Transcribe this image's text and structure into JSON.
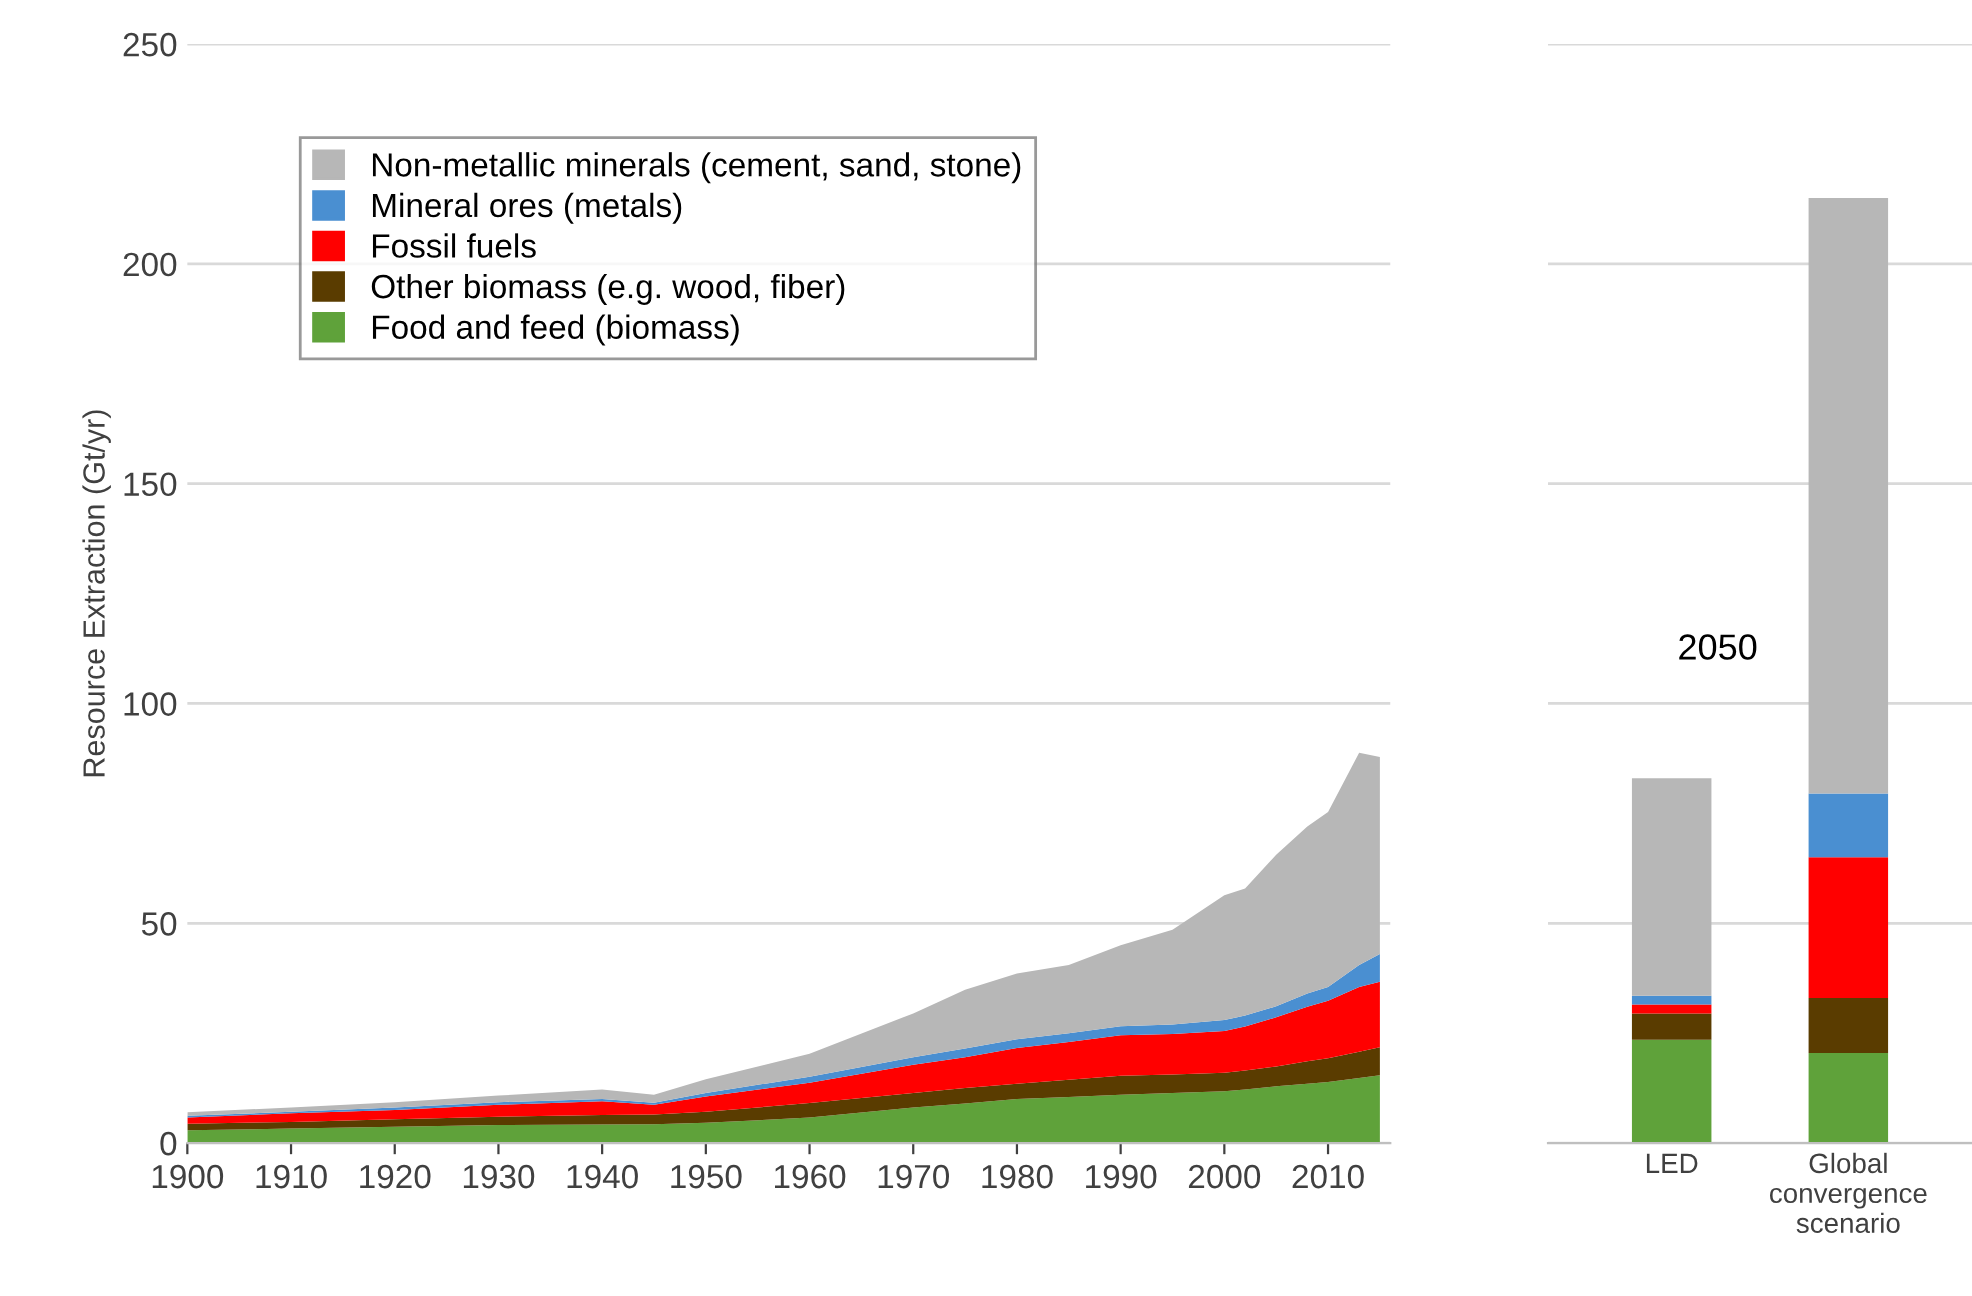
{
  "chart_data": [
    {
      "type": "area",
      "stacked": true,
      "ylabel": "Resource Extraction (Gt/yr)",
      "x": [
        1900,
        1910,
        1920,
        1930,
        1940,
        1945,
        1950,
        1960,
        1970,
        1975,
        1980,
        1985,
        1990,
        1995,
        2000,
        2002,
        2005,
        2008,
        2010,
        2013,
        2015
      ],
      "series": [
        {
          "name": "Food and feed (biomass)",
          "color": "#5fa23a",
          "values": [
            2.9,
            3.3,
            3.7,
            4.1,
            4.2,
            4.3,
            4.6,
            5.8,
            8.1,
            9.0,
            10.0,
            10.5,
            11.0,
            11.4,
            11.8,
            12.2,
            12.9,
            13.5,
            13.9,
            14.8,
            15.4
          ]
        },
        {
          "name": "Other biomass (e.g. wood, fiber)",
          "color": "#5a3c00",
          "values": [
            1.5,
            1.5,
            1.7,
            1.9,
            2.2,
            2.2,
            2.5,
            3.3,
            3.3,
            3.5,
            3.5,
            3.9,
            4.3,
            4.2,
            4.2,
            4.3,
            4.5,
            5.1,
            5.4,
            6.0,
            6.4
          ]
        },
        {
          "name": "Fossil fuels",
          "color": "#ff0000",
          "values": [
            1.4,
            2.0,
            2.1,
            2.7,
            3.1,
            2.2,
            3.5,
            4.6,
            6.4,
            7.0,
            8.1,
            8.6,
            9.2,
            9.2,
            9.5,
            10.0,
            11.2,
            12.4,
            13.1,
            14.7,
            14.9
          ]
        },
        {
          "name": "Mineral ores (metals)",
          "color": "#4a8fd1",
          "values": [
            0.4,
            0.3,
            0.6,
            0.6,
            0.5,
            0.5,
            0.8,
            1.4,
            1.7,
            2.0,
            2.0,
            2.0,
            2.1,
            2.2,
            2.5,
            2.5,
            2.5,
            3.0,
            3.1,
            5.0,
            6.3
          ]
        },
        {
          "name": "Non-metallic minerals (cement, sand, stone)",
          "color": "#b7b7b7",
          "values": [
            0.8,
            1.0,
            1.2,
            1.5,
            2.2,
            1.8,
            3.1,
            5.2,
            10.0,
            13.4,
            15.0,
            15.5,
            18.4,
            21.5,
            28.4,
            28.9,
            34.5,
            38.0,
            39.8,
            48.3,
            44.8
          ]
        }
      ],
      "xlim": [
        1900,
        2016
      ],
      "xticks": [
        1900,
        1910,
        1920,
        1930,
        1940,
        1950,
        1960,
        1970,
        1980,
        1990,
        2000,
        2010
      ],
      "ylim": [
        0,
        250
      ],
      "yticks": [
        0,
        50,
        100,
        150,
        200,
        250
      ],
      "grid": "y",
      "legend": "top left"
    },
    {
      "type": "bar",
      "stacked": true,
      "categories": [
        "LED",
        "Global\nconvergence\nscenario"
      ],
      "series": [
        {
          "color": "#5fa23a",
          "values": [
            23.5,
            20.5
          ]
        },
        {
          "color": "#5a3c00",
          "values": [
            6,
            12.5
          ]
        },
        {
          "color": "#ff0000",
          "values": [
            2,
            32
          ]
        },
        {
          "color": "#4a8fd1",
          "values": [
            2,
            14.5
          ]
        },
        {
          "color": "#b7b7b7",
          "values": [
            49.5,
            135.5
          ]
        }
      ],
      "ylim": [
        0,
        250
      ],
      "yticks": [
        0,
        50,
        100,
        150,
        200,
        250
      ],
      "tick_labels": "x",
      "grid": "y",
      "annotations": [
        "2050"
      ]
    }
  ]
}
